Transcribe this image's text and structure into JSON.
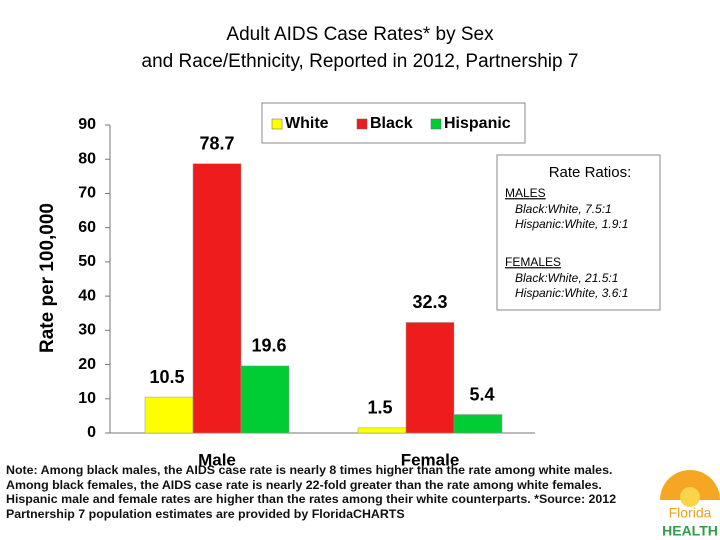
{
  "chart_data": {
    "type": "bar",
    "title": [
      "Adult AIDS Case Rates* by Sex",
      "and Race/Ethnicity, Reported in 2012, Partnership 7"
    ],
    "y_label": "Rate per 100,000",
    "categories": [
      "Male",
      "Female"
    ],
    "series": [
      {
        "name": "White",
        "color": "#ffff00",
        "values": [
          10.5,
          1.5
        ]
      },
      {
        "name": "Black",
        "color": "#ee1c1c",
        "values": [
          78.7,
          32.3
        ]
      },
      {
        "name": "Hispanic",
        "color": "#00cc33",
        "values": [
          19.6,
          5.4
        ]
      }
    ],
    "ylim": [
      0,
      90
    ],
    "yticks": [
      0,
      10,
      20,
      30,
      40,
      50,
      60,
      70,
      80,
      90
    ],
    "grid": false,
    "legend": "top right",
    "annotation": {
      "title": "Rate Ratios:",
      "groups": [
        {
          "heading": "MALES",
          "lines": [
            "Black:White, 7.5:1",
            "Hispanic:White, 1.9:1"
          ]
        },
        {
          "heading": "FEMALES",
          "lines": [
            "Black:White, 21.5:1",
            "Hispanic:White, 3.6:1"
          ]
        }
      ]
    },
    "note": "Note: Among black males, the AIDS case rate is nearly 8 times higher than the rate among white males.  Among black females, the AIDS case rate is nearly 22-fold greater than the rate among white females.  Hispanic male and female rates are higher than the rates among their white counterparts. *Source: 2012 Partnership 7 population estimates are provided by FloridaCHARTS",
    "logo": [
      "Florida",
      "HEALTH"
    ]
  }
}
